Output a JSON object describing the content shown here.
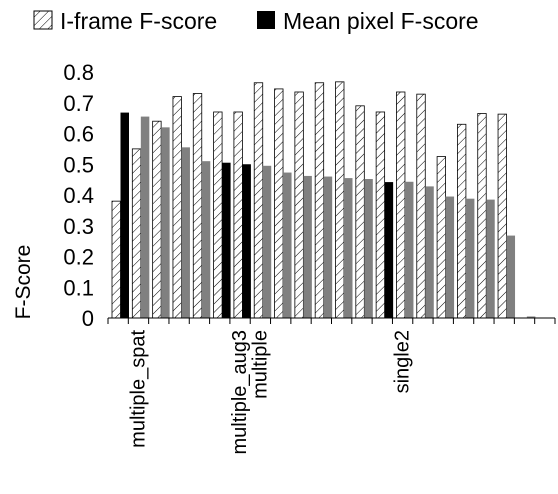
{
  "chart_data": {
    "type": "bar",
    "title": "",
    "xlabel": "",
    "ylabel": "F-Score",
    "ylim": [
      0,
      0.8
    ],
    "yticks": [
      "0",
      "0.1",
      "0.2",
      "0.3",
      "0.4",
      "0.5",
      "0.6",
      "0.7",
      "0.8"
    ],
    "legend_position": "top",
    "categories": [
      "",
      "multiple_spat",
      "",
      "",
      "",
      "",
      "multiple_aug3",
      "multiple",
      "",
      "",
      "",
      "",
      "",
      "",
      "single2",
      "",
      "",
      "",
      "",
      "",
      "",
      ""
    ],
    "series": [
      {
        "name": "I-frame F-score",
        "pattern": "hatch",
        "values": [
          0.38,
          0.55,
          0.64,
          0.72,
          0.73,
          0.67,
          0.67,
          0.765,
          0.745,
          0.735,
          0.765,
          0.768,
          0.69,
          0.67,
          0.735,
          0.728,
          0.525,
          0.63,
          0.665,
          0.663,
          null,
          null
        ]
      },
      {
        "name": "Mean pixel F-score",
        "values": [
          0.668,
          0.655,
          0.62,
          0.555,
          0.51,
          0.505,
          0.5,
          0.495,
          0.473,
          0.462,
          0.46,
          0.455,
          0.452,
          0.442,
          0.443,
          0.428,
          0.395,
          0.388,
          0.385,
          0.268,
          0.005,
          null
        ]
      }
    ],
    "colors": {
      "pixel_highlight": "#000000",
      "pixel_normal": "#808080",
      "hatch_stroke": "#000000"
    },
    "highlighted_pixel_indices": [
      0,
      5,
      6,
      13
    ]
  }
}
